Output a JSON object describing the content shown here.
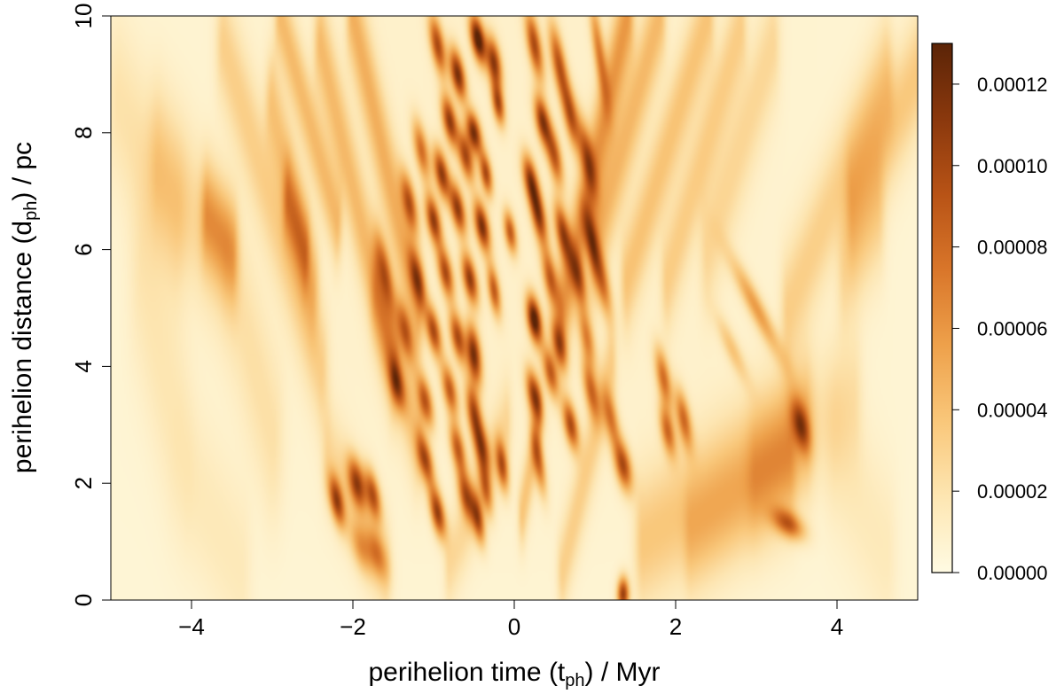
{
  "chart_data": {
    "type": "heatmap",
    "title": "",
    "xlabel": {
      "main": "perihelion time (t",
      "sub": "ph",
      "tail": ") / Myr"
    },
    "ylabel": {
      "main": "perihelion distance (d",
      "sub": "ph",
      "tail": ") / pc"
    },
    "xlim": [
      -5,
      5
    ],
    "ylim": [
      0,
      10
    ],
    "x_ticks": [
      -4,
      -2,
      0,
      2,
      4
    ],
    "x_tick_labels": [
      "−4",
      "−2",
      "0",
      "2",
      "4"
    ],
    "y_ticks": [
      0,
      2,
      4,
      6,
      8,
      10
    ],
    "y_tick_labels": [
      "0",
      "2",
      "4",
      "6",
      "8",
      "10"
    ],
    "colorbar": {
      "min": 0,
      "max": 0.00013,
      "ticks": [
        0,
        2e-05,
        4e-05,
        6e-05,
        8e-05,
        0.0001,
        0.00012
      ],
      "tick_labels": [
        "0.00000",
        "0.00002",
        "0.00004",
        "0.00006",
        "0.00008",
        "0.00010",
        "0.00012"
      ],
      "colors": [
        "#fffbe3",
        "#fde6b2",
        "#f9c77a",
        "#eea14b",
        "#d9762a",
        "#b85316",
        "#8a380d",
        "#5b2407"
      ]
    },
    "grid": false,
    "legend": "right",
    "background_level": 8e-06,
    "blobs": [
      {
        "t": -0.45,
        "d": 9.6,
        "a": 0.00013,
        "sx": 0.06,
        "sy": 0.28,
        "dt": -0.12
      },
      {
        "t": -0.7,
        "d": 9.0,
        "a": 0.00011,
        "sx": 0.06,
        "sy": 0.3,
        "dt": -0.12
      },
      {
        "t": -0.95,
        "d": 9.5,
        "a": 9e-05,
        "sx": 0.06,
        "sy": 0.35,
        "dt": -0.12
      },
      {
        "t": -0.25,
        "d": 9.2,
        "a": 0.0001,
        "sx": 0.06,
        "sy": 0.3,
        "dt": -0.1
      },
      {
        "t": 0.25,
        "d": 9.5,
        "a": 9e-05,
        "sx": 0.06,
        "sy": 0.4,
        "dt": -0.12
      },
      {
        "t": 0.55,
        "d": 9.2,
        "a": 8e-05,
        "sx": 0.06,
        "sy": 0.45,
        "dt": -0.12
      },
      {
        "t": 1.05,
        "d": 9.4,
        "a": 6e-05,
        "sx": 0.05,
        "sy": 0.6,
        "dt": -0.1
      },
      {
        "t": -0.8,
        "d": 8.2,
        "a": 0.0001,
        "sx": 0.06,
        "sy": 0.3,
        "dt": -0.12
      },
      {
        "t": -0.5,
        "d": 8.0,
        "a": 0.00011,
        "sx": 0.06,
        "sy": 0.25,
        "dt": -0.12
      },
      {
        "t": -0.2,
        "d": 8.5,
        "a": 9e-05,
        "sx": 0.05,
        "sy": 0.25,
        "dt": -0.1
      },
      {
        "t": 0.35,
        "d": 8.2,
        "a": 0.0001,
        "sx": 0.06,
        "sy": 0.3,
        "dt": -0.12
      },
      {
        "t": 0.7,
        "d": 8.3,
        "a": 8e-05,
        "sx": 0.06,
        "sy": 0.4,
        "dt": -0.12
      },
      {
        "t": -1.15,
        "d": 7.7,
        "a": 7e-05,
        "sx": 0.06,
        "sy": 0.35,
        "dt": -0.12
      },
      {
        "t": -0.9,
        "d": 7.3,
        "a": 0.0001,
        "sx": 0.06,
        "sy": 0.3,
        "dt": -0.12
      },
      {
        "t": -0.6,
        "d": 7.6,
        "a": 9e-05,
        "sx": 0.06,
        "sy": 0.3,
        "dt": -0.12
      },
      {
        "t": -0.35,
        "d": 7.3,
        "a": 9e-05,
        "sx": 0.05,
        "sy": 0.25,
        "dt": -0.1
      },
      {
        "t": 0.2,
        "d": 7.2,
        "a": 9e-05,
        "sx": 0.06,
        "sy": 0.3,
        "dt": -0.12
      },
      {
        "t": 0.5,
        "d": 7.6,
        "a": 8e-05,
        "sx": 0.06,
        "sy": 0.35,
        "dt": -0.12
      },
      {
        "t": 0.9,
        "d": 7.6,
        "a": 7e-05,
        "sx": 0.06,
        "sy": 0.45,
        "dt": -0.12
      },
      {
        "t": -1.3,
        "d": 6.8,
        "a": 8e-05,
        "sx": 0.06,
        "sy": 0.35,
        "dt": -0.12
      },
      {
        "t": -1.0,
        "d": 6.5,
        "a": 0.0001,
        "sx": 0.06,
        "sy": 0.3,
        "dt": -0.12
      },
      {
        "t": -0.7,
        "d": 6.7,
        "a": 0.0001,
        "sx": 0.06,
        "sy": 0.3,
        "dt": -0.12
      },
      {
        "t": -0.4,
        "d": 6.4,
        "a": 0.00011,
        "sx": 0.06,
        "sy": 0.3,
        "dt": -0.12
      },
      {
        "t": -0.05,
        "d": 6.3,
        "a": 8e-05,
        "sx": 0.05,
        "sy": 0.25,
        "dt": -0.1
      },
      {
        "t": 0.3,
        "d": 6.6,
        "a": 0.0001,
        "sx": 0.06,
        "sy": 0.35,
        "dt": -0.12
      },
      {
        "t": 0.6,
        "d": 6.3,
        "a": 9e-05,
        "sx": 0.06,
        "sy": 0.35,
        "dt": -0.12
      },
      {
        "t": 0.95,
        "d": 6.2,
        "a": 7e-05,
        "sx": 0.06,
        "sy": 0.4,
        "dt": -0.12
      },
      {
        "t": -1.6,
        "d": 5.6,
        "a": 6e-05,
        "sx": 0.06,
        "sy": 0.45,
        "dt": -0.12
      },
      {
        "t": -1.2,
        "d": 5.5,
        "a": 8e-05,
        "sx": 0.06,
        "sy": 0.35,
        "dt": -0.12
      },
      {
        "t": -0.85,
        "d": 5.6,
        "a": 9e-05,
        "sx": 0.06,
        "sy": 0.3,
        "dt": -0.12
      },
      {
        "t": -0.55,
        "d": 5.5,
        "a": 0.0001,
        "sx": 0.06,
        "sy": 0.3,
        "dt": -0.12
      },
      {
        "t": -0.25,
        "d": 5.3,
        "a": 8e-05,
        "sx": 0.05,
        "sy": 0.3,
        "dt": -0.1
      },
      {
        "t": 0.45,
        "d": 5.5,
        "a": 8e-05,
        "sx": 0.06,
        "sy": 0.35,
        "dt": -0.12
      },
      {
        "t": 0.8,
        "d": 5.5,
        "a": 7e-05,
        "sx": 0.06,
        "sy": 0.35,
        "dt": -0.12
      },
      {
        "t": 1.1,
        "d": 5.4,
        "a": 6e-05,
        "sx": 0.06,
        "sy": 0.4,
        "dt": -0.12
      },
      {
        "t": -1.35,
        "d": 4.6,
        "a": 7e-05,
        "sx": 0.06,
        "sy": 0.35,
        "dt": -0.12
      },
      {
        "t": -1.0,
        "d": 4.6,
        "a": 9e-05,
        "sx": 0.06,
        "sy": 0.3,
        "dt": -0.12
      },
      {
        "t": -0.7,
        "d": 4.5,
        "a": 9e-05,
        "sx": 0.06,
        "sy": 0.3,
        "dt": -0.12
      },
      {
        "t": 0.25,
        "d": 4.8,
        "a": 0.00013,
        "sx": 0.06,
        "sy": 0.28,
        "dt": -0.1
      },
      {
        "t": 0.55,
        "d": 4.4,
        "a": 8e-05,
        "sx": 0.06,
        "sy": 0.3,
        "dt": -0.12
      },
      {
        "t": 0.9,
        "d": 4.5,
        "a": 6e-05,
        "sx": 0.06,
        "sy": 0.35,
        "dt": -0.12
      },
      {
        "t": -0.5,
        "d": 4.2,
        "a": 0.00011,
        "sx": 0.06,
        "sy": 0.35,
        "dt": -0.08
      },
      {
        "t": -1.45,
        "d": 3.7,
        "a": 7e-05,
        "sx": 0.06,
        "sy": 0.3,
        "dt": -0.12
      },
      {
        "t": -1.1,
        "d": 3.4,
        "a": 8e-05,
        "sx": 0.06,
        "sy": 0.3,
        "dt": -0.12
      },
      {
        "t": -0.8,
        "d": 3.6,
        "a": 8e-05,
        "sx": 0.06,
        "sy": 0.3,
        "dt": -0.12
      },
      {
        "t": 0.25,
        "d": 3.5,
        "a": 0.0001,
        "sx": 0.06,
        "sy": 0.3,
        "dt": -0.12
      },
      {
        "t": 0.45,
        "d": 3.9,
        "a": 8e-05,
        "sx": 0.06,
        "sy": 0.3,
        "dt": -0.12
      },
      {
        "t": 0.95,
        "d": 3.6,
        "a": 7e-05,
        "sx": 0.06,
        "sy": 0.35,
        "dt": -0.12
      },
      {
        "t": 1.85,
        "d": 3.8,
        "a": 7e-05,
        "sx": 0.06,
        "sy": 0.35,
        "dt": -0.12
      },
      {
        "t": -0.5,
        "d": 3.2,
        "a": 9e-05,
        "sx": 0.06,
        "sy": 0.35,
        "dt": -0.1
      },
      {
        "t": 0.7,
        "d": 3.0,
        "a": 9e-05,
        "sx": 0.06,
        "sy": 0.3,
        "dt": -0.12
      },
      {
        "t": 1.2,
        "d": 3.1,
        "a": 6e-05,
        "sx": 0.06,
        "sy": 0.35,
        "dt": -0.12
      },
      {
        "t": 2.1,
        "d": 3.1,
        "a": 7e-05,
        "sx": 0.06,
        "sy": 0.35,
        "dt": -0.12
      },
      {
        "t": 1.9,
        "d": 2.9,
        "a": 7e-05,
        "sx": 0.06,
        "sy": 0.3,
        "dt": -0.12
      },
      {
        "t": -1.1,
        "d": 2.4,
        "a": 9e-05,
        "sx": 0.06,
        "sy": 0.3,
        "dt": -0.12
      },
      {
        "t": -0.7,
        "d": 2.6,
        "a": 8e-05,
        "sx": 0.06,
        "sy": 0.3,
        "dt": -0.12
      },
      {
        "t": -0.4,
        "d": 2.6,
        "a": 8e-05,
        "sx": 0.06,
        "sy": 0.3,
        "dt": -0.1
      },
      {
        "t": -0.15,
        "d": 2.3,
        "a": 8e-05,
        "sx": 0.05,
        "sy": 0.3,
        "dt": -0.08
      },
      {
        "t": 0.3,
        "d": 2.4,
        "a": 7e-05,
        "sx": 0.05,
        "sy": 0.4,
        "dt": -0.1
      },
      {
        "t": 1.35,
        "d": 2.3,
        "a": 9e-05,
        "sx": 0.07,
        "sy": 0.3,
        "dt": -0.12
      },
      {
        "t": -1.95,
        "d": 2.0,
        "a": 9e-05,
        "sx": 0.07,
        "sy": 0.3,
        "dt": -0.12
      },
      {
        "t": -2.2,
        "d": 1.7,
        "a": 9e-05,
        "sx": 0.06,
        "sy": 0.3,
        "dt": -0.12
      },
      {
        "t": -1.75,
        "d": 1.8,
        "a": 8e-05,
        "sx": 0.06,
        "sy": 0.3,
        "dt": -0.12
      },
      {
        "t": -0.95,
        "d": 1.5,
        "a": 0.0001,
        "sx": 0.06,
        "sy": 0.3,
        "dt": -0.12
      },
      {
        "t": -0.6,
        "d": 1.8,
        "a": 8e-05,
        "sx": 0.06,
        "sy": 0.3,
        "dt": -0.12
      },
      {
        "t": -0.45,
        "d": 1.4,
        "a": 8e-05,
        "sx": 0.05,
        "sy": 0.3,
        "dt": -0.1
      },
      {
        "t": -0.35,
        "d": 1.9,
        "a": 6e-05,
        "sx": 0.05,
        "sy": 0.3,
        "dt": -0.1
      },
      {
        "t": 3.55,
        "d": 3.0,
        "a": 7e-05,
        "sx": 0.07,
        "sy": 0.3,
        "dt": -0.12
      },
      {
        "t": 3.4,
        "d": 1.3,
        "a": 7e-05,
        "sx": 0.12,
        "sy": 0.18,
        "dt": -0.35
      },
      {
        "t": -1.7,
        "d": 0.8,
        "a": 5e-05,
        "sx": 0.08,
        "sy": 0.3,
        "dt": -0.15
      },
      {
        "t": -1.9,
        "d": 0.9,
        "a": 4e-05,
        "sx": 0.08,
        "sy": 0.3,
        "dt": -0.15
      },
      {
        "t": 1.35,
        "d": 0.1,
        "a": 0.0001,
        "sx": 0.05,
        "sy": 0.2,
        "dt": 0.0
      },
      {
        "t": 3.0,
        "d": 5.0,
        "a": 5e-05,
        "sx": 0.08,
        "sy": 0.6,
        "dt": -0.35
      },
      {
        "t": 2.7,
        "d": 4.3,
        "a": 3e-05,
        "sx": 0.07,
        "sy": 0.4,
        "dt": -0.3
      }
    ],
    "streaks": [
      {
        "x0": -4.4,
        "y0": 7.5,
        "x1": -3.6,
        "y1": 5.8,
        "a": 2e-05,
        "w": 0.09
      },
      {
        "x0": -4.9,
        "y0": 8.5,
        "x1": -4.2,
        "y1": 6.5,
        "a": 1.5e-05,
        "w": 0.1
      },
      {
        "x0": -3.6,
        "y0": 9.5,
        "x1": -2.4,
        "y1": 4.0,
        "a": 2.5e-05,
        "w": 0.07
      },
      {
        "x0": -3.0,
        "y0": 8.5,
        "x1": -2.5,
        "y1": 5.5,
        "a": 3e-05,
        "w": 0.06
      },
      {
        "x0": -2.9,
        "y0": 10,
        "x1": -2.2,
        "y1": 6.5,
        "a": 3.5e-05,
        "w": 0.05
      },
      {
        "x0": -2.4,
        "y0": 9.5,
        "x1": -1.5,
        "y1": 4.0,
        "a": 3.5e-05,
        "w": 0.06
      },
      {
        "x0": -2.0,
        "y0": 10,
        "x1": -1.2,
        "y1": 5.0,
        "a": 4e-05,
        "w": 0.06
      },
      {
        "x0": -2.8,
        "y0": 6.8,
        "x1": -2.6,
        "y1": 6.0,
        "a": 4e-05,
        "w": 0.05
      },
      {
        "x0": -3.8,
        "y0": 6.6,
        "x1": -3.5,
        "y1": 6.0,
        "a": 4e-05,
        "w": 0.06
      },
      {
        "x0": 1.4,
        "y0": 10,
        "x1": 0.6,
        "y1": 5.0,
        "a": 5e-05,
        "w": 0.06
      },
      {
        "x0": 1.8,
        "y0": 10,
        "x1": 1.0,
        "y1": 6.0,
        "a": 3.5e-05,
        "w": 0.06
      },
      {
        "x0": 2.4,
        "y0": 10,
        "x1": 1.4,
        "y1": 5.5,
        "a": 3e-05,
        "w": 0.06
      },
      {
        "x0": 2.8,
        "y0": 9.8,
        "x1": 1.9,
        "y1": 5.5,
        "a": 2.5e-05,
        "w": 0.06
      },
      {
        "x0": 3.2,
        "y0": 9.5,
        "x1": 2.4,
        "y1": 6.0,
        "a": 2e-05,
        "w": 0.07
      },
      {
        "x0": 4.6,
        "y0": 9.0,
        "x1": 3.4,
        "y1": 5.0,
        "a": 2.5e-05,
        "w": 0.07
      },
      {
        "x0": 5.0,
        "y0": 9.0,
        "x1": 4.2,
        "y1": 6.8,
        "a": 3e-05,
        "w": 0.07
      },
      {
        "x0": 4.5,
        "y0": 6.5,
        "x1": 4.1,
        "y1": 5.6,
        "a": 2e-05,
        "w": 0.07
      },
      {
        "x0": 1.2,
        "y0": 4.0,
        "x1": 0.6,
        "y1": 0.5,
        "a": 2.5e-05,
        "w": 0.05
      },
      {
        "x0": 0.3,
        "y0": 3.0,
        "x1": 0.1,
        "y1": 1.5,
        "a": 3e-05,
        "w": 0.04
      },
      {
        "x0": 3.6,
        "y0": 3.0,
        "x1": 1.6,
        "y1": 1.0,
        "a": 3e-05,
        "w": 0.08
      },
      {
        "x0": 3.4,
        "y0": 2.2,
        "x1": 2.2,
        "y1": 1.0,
        "a": 2e-05,
        "w": 0.07
      },
      {
        "x0": 4.2,
        "y0": 3.5,
        "x1": 3.0,
        "y1": 2.2,
        "a": 1.5e-05,
        "w": 0.08
      },
      {
        "x0": -1.7,
        "y0": 5.3,
        "x1": -1.2,
        "y1": 2.8,
        "a": 3e-05,
        "w": 0.06
      },
      {
        "x0": -0.1,
        "y0": 3.0,
        "x1": -0.8,
        "y1": 0.6,
        "a": 2e-05,
        "w": 0.05
      },
      {
        "x0": -2.3,
        "y0": 2.5,
        "x1": -1.6,
        "y1": 0.5,
        "a": 2e-05,
        "w": 0.06
      },
      {
        "x0": -4.0,
        "y0": 2.0,
        "x1": -3.4,
        "y1": 0.5,
        "a": 1e-05,
        "w": 0.1
      },
      {
        "x0": 4.0,
        "y0": 2.5,
        "x1": 4.6,
        "y1": 0.8,
        "a": 1e-05,
        "w": 0.1
      },
      {
        "x0": -4.6,
        "y0": 5.5,
        "x1": -4.2,
        "y1": 3.0,
        "a": 1.2e-05,
        "w": 0.12
      },
      {
        "x0": -3.4,
        "y0": 5.0,
        "x1": -3.0,
        "y1": 2.8,
        "a": 1.5e-05,
        "w": 0.1
      }
    ]
  }
}
